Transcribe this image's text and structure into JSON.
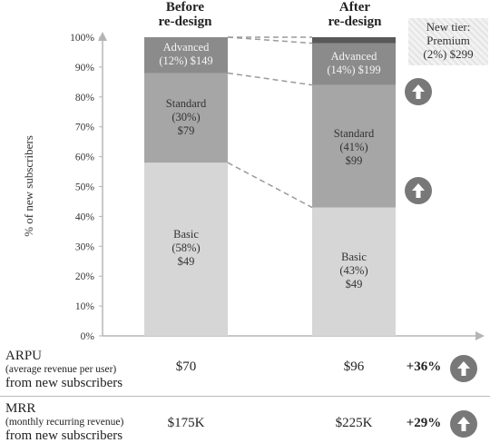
{
  "chart_data": {
    "type": "bar",
    "stacked": true,
    "ylabel": "% of new subscribers",
    "ylim": [
      0,
      100
    ],
    "yticks": [
      "0%",
      "10%",
      "20%",
      "30%",
      "40%",
      "50%",
      "60%",
      "70%",
      "80%",
      "90%",
      "100%"
    ],
    "categories": [
      "Before\nre-design",
      "After\nre-design"
    ],
    "category_labels": {
      "before": [
        "Before",
        "re-design"
      ],
      "after": [
        "After",
        "re-design"
      ]
    },
    "series": [
      {
        "name": "Basic",
        "values": [
          58,
          43
        ],
        "price": "$49",
        "color": "#d6d6d6"
      },
      {
        "name": "Standard",
        "values": [
          30,
          41
        ],
        "price_before": "$79",
        "price_after": "$99",
        "color": "#a6a6a6"
      },
      {
        "name": "Advanced",
        "values": [
          12,
          14
        ],
        "price_before": "$149",
        "price_after": "$199",
        "color": "#8b8b8b"
      },
      {
        "name": "Premium",
        "values": [
          0,
          2
        ],
        "price": "$299",
        "color": "#595959"
      }
    ],
    "segment_text": {
      "before": {
        "basic": [
          "Basic",
          "(58%)",
          "$49"
        ],
        "standard": [
          "Standard",
          "(30%)",
          "$79"
        ],
        "advanced": [
          "Advanced",
          "(12%) $149"
        ]
      },
      "after": {
        "basic": [
          "Basic",
          "(43%)",
          "$49"
        ],
        "standard": [
          "Standard",
          "(41%)",
          "$99"
        ],
        "advanced": [
          "Advanced",
          "(14%) $199"
        ]
      }
    },
    "premium_note": [
      "New tier:",
      "Premium",
      "(2%) $299"
    ]
  },
  "metrics": [
    {
      "title": "ARPU",
      "subtitle": "(average revenue per user)",
      "suffix": "from new subscribers",
      "before": "$70",
      "after": "$96",
      "change": "+36%"
    },
    {
      "title": "MRR",
      "subtitle": "(monthly recurring revenue)",
      "suffix": "from new subscribers",
      "before": "$175K",
      "after": "$225K",
      "change": "+29%"
    }
  ],
  "icons": [
    "up-arrow-icon"
  ],
  "colors": {
    "axis": "#b5b5b5",
    "icon_bg": "#787878"
  }
}
